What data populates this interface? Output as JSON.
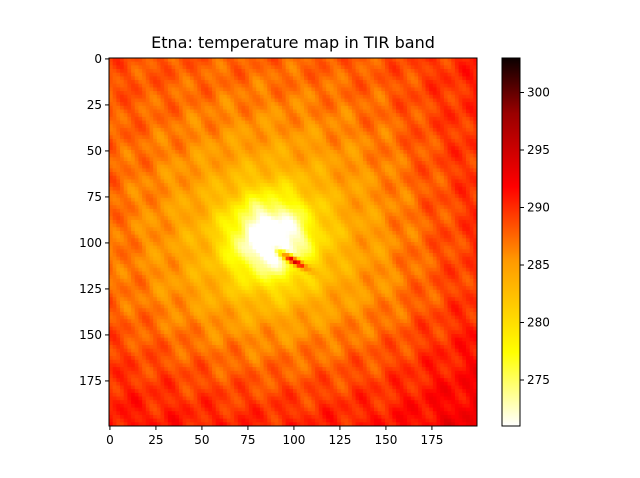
{
  "chart_data": {
    "type": "heatmap",
    "title": "Etna: temperature map in TIR band",
    "x_ticks": [
      0,
      25,
      50,
      75,
      100,
      125,
      150,
      175
    ],
    "y_ticks": [
      0,
      25,
      50,
      75,
      100,
      125,
      150,
      175
    ],
    "extent": {
      "xmin": 0,
      "xmax": 200,
      "ymin": 0,
      "ymax": 200
    },
    "colormap": "hot_r",
    "colorbar": {
      "min": 271,
      "max": 303,
      "ticks": [
        275,
        280,
        285,
        290,
        295,
        300
      ]
    },
    "features": {
      "background_level": 289,
      "summit_cool_center": [
        88,
        98
      ],
      "summit_cool_level": 272,
      "hot_vent_center": [
        100,
        110
      ],
      "hot_vent_level": 302
    },
    "colors": {
      "stops": [
        "#ffffff",
        "#ffff00",
        "#ff9900",
        "#ff0000",
        "#990000",
        "#0b0000"
      ]
    }
  }
}
